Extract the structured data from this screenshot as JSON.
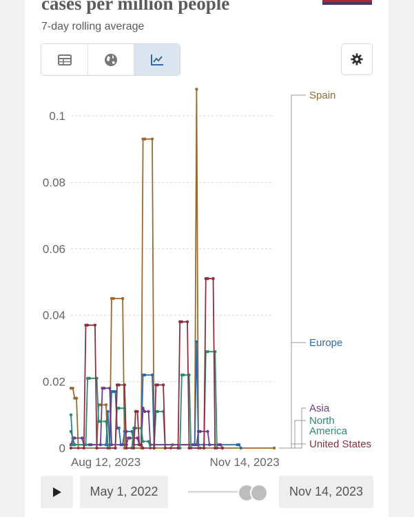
{
  "header": {
    "title": "cases per million people",
    "subtitle": "7-day rolling average"
  },
  "toolbar": {
    "tabs": [
      {
        "name": "table",
        "icon": "table-icon"
      },
      {
        "name": "map",
        "icon": "globe-icon"
      },
      {
        "name": "chart",
        "icon": "line-chart-icon",
        "active": true
      }
    ],
    "settings_icon": "gear-icon"
  },
  "chart_data": {
    "type": "line",
    "title": "cases per million people",
    "subtitle": "7-day rolling average",
    "ylim": [
      0,
      0.11
    ],
    "yticks": [
      0,
      0.02,
      0.04,
      0.06,
      0.08,
      0.1
    ],
    "ytick_labels": [
      "0",
      "0.02",
      "0.04",
      "0.06",
      "0.08",
      "0.1"
    ],
    "xlim_days": [
      0,
      110
    ],
    "xtick_labels": [
      {
        "day": 0,
        "label": "Aug 12, 2023"
      },
      {
        "day": 94,
        "label": "Nov 14, 2023"
      }
    ],
    "grid": true,
    "series": [
      {
        "name": "Spain",
        "color": "#9a6b2f",
        "points": [
          [
            0,
            0.018
          ],
          [
            1,
            0.018
          ],
          [
            2,
            0.015
          ],
          [
            3,
            0.015
          ],
          [
            4,
            0
          ],
          [
            14,
            0
          ],
          [
            15,
            0.013
          ],
          [
            16,
            0.013
          ],
          [
            19,
            0.013
          ],
          [
            20,
            0
          ],
          [
            21,
            0
          ],
          [
            22,
            0.045
          ],
          [
            23,
            0.045
          ],
          [
            28,
            0.045
          ],
          [
            29,
            0
          ],
          [
            38,
            0
          ],
          [
            39,
            0.093
          ],
          [
            40,
            0.093
          ],
          [
            44,
            0.093
          ],
          [
            45,
            0
          ],
          [
            54,
            0
          ],
          [
            55,
            0.001
          ],
          [
            66,
            0.001
          ],
          [
            67,
            0.001
          ],
          [
            68,
            0.108
          ],
          [
            69,
            0
          ],
          [
            70,
            0
          ],
          [
            110,
            0
          ]
        ]
      },
      {
        "name": "Europe",
        "color": "#2f6aa6",
        "points": [
          [
            0,
            0.005
          ],
          [
            1,
            0.003
          ],
          [
            2,
            0.001
          ],
          [
            10,
            0.001
          ],
          [
            11,
            0.001
          ],
          [
            19,
            0.001
          ],
          [
            20,
            0.011
          ],
          [
            21,
            0.001
          ],
          [
            22,
            0.017
          ],
          [
            23,
            0.017
          ],
          [
            24,
            0.017
          ],
          [
            25,
            0.006
          ],
          [
            26,
            0.006
          ],
          [
            27,
            0.001
          ],
          [
            28,
            0.001
          ],
          [
            29,
            0.005
          ],
          [
            30,
            0.005
          ],
          [
            33,
            0.005
          ],
          [
            34,
            0.001
          ],
          [
            38,
            0.001
          ],
          [
            39,
            0.022
          ],
          [
            40,
            0.022
          ],
          [
            44,
            0.022
          ],
          [
            45,
            0.001
          ],
          [
            66,
            0.001
          ],
          [
            67,
            0.001
          ],
          [
            68,
            0.032
          ],
          [
            69,
            0.001
          ],
          [
            72,
            0.001
          ],
          [
            90,
            0.001
          ],
          [
            91,
            0.001
          ],
          [
            92,
            0
          ]
        ]
      },
      {
        "name": "Asia",
        "color": "#6b3d8f",
        "points": [
          [
            0,
            0.001
          ],
          [
            1,
            0.003
          ],
          [
            2,
            0.003
          ],
          [
            6,
            0.003
          ],
          [
            7,
            0.001
          ],
          [
            16,
            0.001
          ],
          [
            17,
            0.018
          ],
          [
            18,
            0.018
          ],
          [
            21,
            0.018
          ],
          [
            22,
            0.001
          ],
          [
            30,
            0.001
          ],
          [
            31,
            0.003
          ],
          [
            32,
            0.003
          ],
          [
            36,
            0.003
          ],
          [
            37,
            0.001
          ],
          [
            38,
            0.001
          ],
          [
            39,
            0.012
          ],
          [
            40,
            0.011
          ],
          [
            42,
            0.011
          ],
          [
            43,
            0.001
          ],
          [
            68,
            0.001
          ],
          [
            69,
            0.005
          ],
          [
            70,
            0.005
          ],
          [
            74,
            0.005
          ],
          [
            75,
            0.001
          ],
          [
            80,
            0.001
          ],
          [
            81,
            0.001
          ],
          [
            82,
            0
          ]
        ]
      },
      {
        "name": "North America",
        "color": "#2f8a6b",
        "points": [
          [
            0,
            0.01
          ],
          [
            1,
            0.001
          ],
          [
            2,
            0.001
          ],
          [
            8,
            0.001
          ],
          [
            9,
            0.021
          ],
          [
            10,
            0.021
          ],
          [
            14,
            0.021
          ],
          [
            15,
            0.008
          ],
          [
            16,
            0.008
          ],
          [
            19,
            0.008
          ],
          [
            20,
            0
          ],
          [
            24,
            0
          ],
          [
            25,
            0.012
          ],
          [
            26,
            0.012
          ],
          [
            29,
            0.012
          ],
          [
            30,
            0
          ],
          [
            33,
            0
          ],
          [
            34,
            0.006
          ],
          [
            35,
            0.006
          ],
          [
            38,
            0.006
          ],
          [
            39,
            0.002
          ],
          [
            42,
            0.002
          ],
          [
            43,
            0
          ],
          [
            45,
            0
          ],
          [
            46,
            0.011
          ],
          [
            47,
            0.011
          ],
          [
            50,
            0.011
          ],
          [
            51,
            0
          ],
          [
            59,
            0
          ],
          [
            60,
            0.022
          ],
          [
            61,
            0.022
          ],
          [
            64,
            0.022
          ],
          [
            65,
            0
          ],
          [
            72,
            0
          ],
          [
            73,
            0.029
          ],
          [
            74,
            0.029
          ],
          [
            78,
            0.029
          ],
          [
            79,
            0
          ],
          [
            82,
            0
          ]
        ]
      },
      {
        "name": "United States",
        "color": "#8c2f3f",
        "points": [
          [
            0,
            0
          ],
          [
            7,
            0
          ],
          [
            8,
            0.037
          ],
          [
            9,
            0.037
          ],
          [
            13,
            0.037
          ],
          [
            14,
            0
          ],
          [
            24,
            0
          ],
          [
            25,
            0.019
          ],
          [
            26,
            0.019
          ],
          [
            29,
            0.019
          ],
          [
            30,
            0
          ],
          [
            34,
            0
          ],
          [
            35,
            0.011
          ],
          [
            36,
            0.011
          ],
          [
            37,
            0.001
          ],
          [
            38,
            0.001
          ],
          [
            39,
            0
          ],
          [
            45,
            0
          ],
          [
            46,
            0.019
          ],
          [
            47,
            0.019
          ],
          [
            50,
            0.019
          ],
          [
            51,
            0
          ],
          [
            58,
            0
          ],
          [
            59,
            0.038
          ],
          [
            60,
            0.038
          ],
          [
            63,
            0.038
          ],
          [
            64,
            0
          ],
          [
            72,
            0
          ],
          [
            73,
            0.051
          ],
          [
            74,
            0.051
          ],
          [
            77,
            0.051
          ],
          [
            78,
            0
          ],
          [
            82,
            0
          ]
        ]
      }
    ]
  },
  "timeline": {
    "play_icon": "play-icon",
    "start_date": "May 1, 2022",
    "end_date": "Nov 14, 2023"
  }
}
